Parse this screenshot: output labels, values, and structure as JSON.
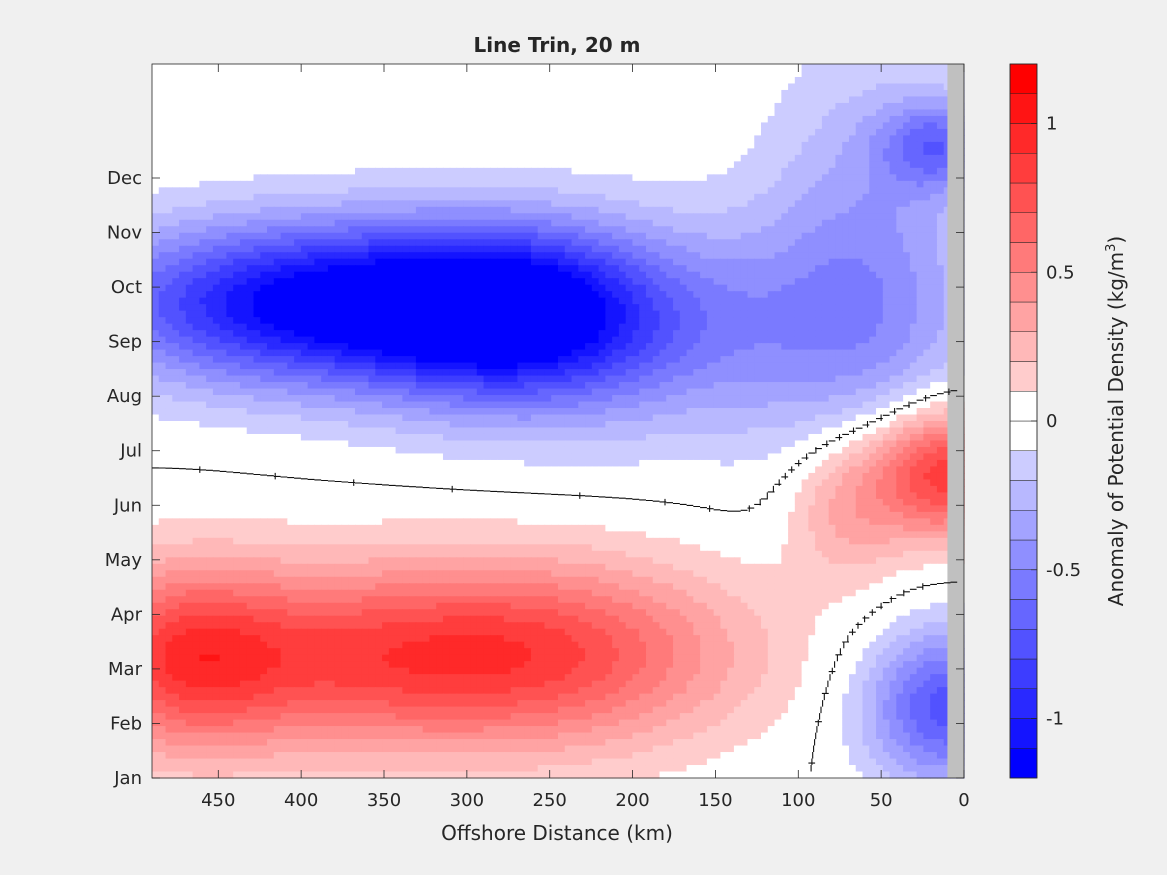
{
  "chart_data": {
    "type": "heatmap",
    "title": "Line Trin, 20 m",
    "xlabel": "Offshore Distance (km)",
    "ylabel": "",
    "xlim": [
      490,
      0
    ],
    "x_reversed": true,
    "x_ticks": [
      450,
      400,
      350,
      300,
      250,
      200,
      150,
      100,
      50,
      0
    ],
    "y_ticks": [
      "Jan",
      "Feb",
      "Mar",
      "Apr",
      "May",
      "Jun",
      "Jul",
      "Aug",
      "Sep",
      "Oct",
      "Nov",
      "Dec"
    ],
    "colorbar": {
      "label_main": "Anomaly of Potential Density (kg/m",
      "label_sup": "3",
      "label_close": ")",
      "range": [
        -1.2,
        1.2
      ],
      "step": 0.1,
      "tick_values": [
        -1,
        -0.5,
        0,
        0.5,
        1
      ],
      "tick_labels": [
        "-1",
        "-0.5",
        "0",
        "0.5",
        "1"
      ],
      "negative_color": "#0000ff",
      "positive_color": "#ff0000",
      "neutral_band": [
        -0.1,
        0.1
      ]
    },
    "nodata_color": "#c0c0c0",
    "nodata_x_range": [
      0,
      10
    ],
    "contour_level": 0,
    "anomaly_features": [
      {
        "x_km": 390,
        "month": 8.7,
        "value": -1.15,
        "spread_km": 95,
        "spread_month": 1.05
      },
      {
        "x_km": 270,
        "month": 8.5,
        "value": -0.8,
        "spread_km": 60,
        "spread_month": 1.1
      },
      {
        "x_km": 180,
        "month": 8.2,
        "value": -0.4,
        "spread_km": 110,
        "spread_month": 1.4
      },
      {
        "x_km": 60,
        "month": 9.6,
        "value": -0.35,
        "spread_km": 45,
        "spread_month": 2.5
      },
      {
        "x_km": 15,
        "month": 11.6,
        "value": -0.55,
        "spread_km": 25,
        "spread_month": 0.6
      },
      {
        "x_km": 380,
        "month": 2.2,
        "value": 0.72,
        "spread_km": 110,
        "spread_month": 1.2
      },
      {
        "x_km": 240,
        "month": 2.3,
        "value": 0.52,
        "spread_km": 80,
        "spread_month": 1.2
      },
      {
        "x_km": 470,
        "month": 2.2,
        "value": 0.45,
        "spread_km": 40,
        "spread_month": 1.2
      },
      {
        "x_km": 12,
        "month": 5.6,
        "value": 0.9,
        "spread_km": 30,
        "spread_month": 0.85
      },
      {
        "x_km": 70,
        "month": 5.0,
        "value": 0.35,
        "spread_km": 25,
        "spread_month": 1.0
      },
      {
        "x_km": 10,
        "month": 1.3,
        "value": -0.75,
        "spread_km": 35,
        "spread_month": 1.0
      }
    ]
  }
}
